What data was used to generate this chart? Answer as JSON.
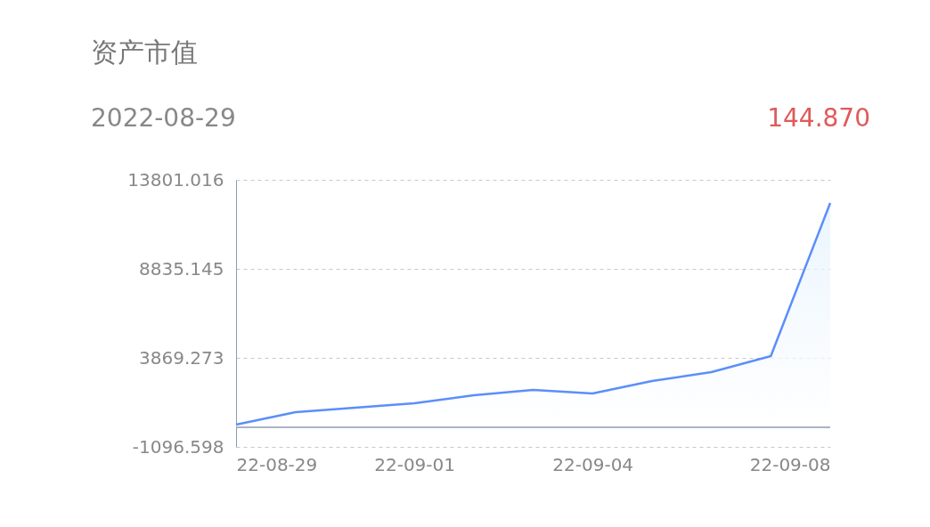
{
  "chart_data": {
    "type": "area",
    "title": "资产市值",
    "annotations": [
      "2022-08-29",
      "144.870"
    ],
    "x": [
      "2022-08-29",
      "2022-08-30",
      "2022-08-31",
      "2022-09-01",
      "2022-09-02",
      "2022-09-03",
      "2022-09-04",
      "2022-09-05",
      "2022-09-06",
      "2022-09-07",
      "2022-09-08"
    ],
    "series": [
      {
        "color": "#5b8ff9",
        "values": [
          144.87,
          840,
          1088,
          1337,
          1783,
          2081,
          1883,
          2578,
          3075,
          3968,
          12510
        ]
      }
    ],
    "xlim": [
      "2022-08-29",
      "2022-09-08"
    ],
    "xticks": [
      {
        "value": "2022-08-29",
        "label": "22-08-29"
      },
      {
        "value": "2022-09-01",
        "label": "22-09-01"
      },
      {
        "value": "2022-09-04",
        "label": "22-09-04"
      },
      {
        "value": "2022-09-08",
        "label": "22-09-08"
      }
    ],
    "ylim": [
      -1096.598,
      13801.016
    ],
    "yticks": [
      -1096.598,
      3869.273,
      8835.145,
      13801.016
    ],
    "ref_lines": [
      {
        "axis": "y",
        "value": 0,
        "color": "#8c9bb0"
      }
    ],
    "grid": "y",
    "marker": "none"
  }
}
